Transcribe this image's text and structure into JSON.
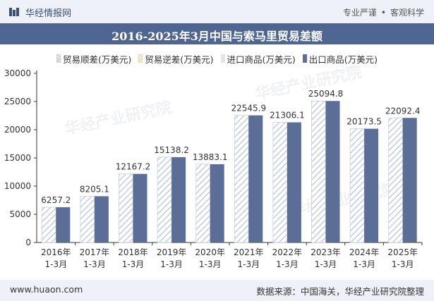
{
  "header": {
    "site_name": "华经情报网",
    "slogan_left": "专业严谨",
    "slogan_right": "客观科学"
  },
  "title": "2016-2025年3月中国与索马里贸易差额",
  "legend": [
    "贸易顺差(万美元)",
    "贸易逆差(万美元)",
    "进口商品(万美元)",
    "出口商品(万美元)"
  ],
  "footer": {
    "left": "www.huaon.com",
    "right": "数据来源：中国海关，华经产业研究院整理"
  },
  "watermark": "华经产业研究院",
  "colors": {
    "export": "#5b6e98",
    "surplus_hatch": "#b9c3d6",
    "topbar": "#eef2f8",
    "titlebar": "#4f6592"
  },
  "chart_data": {
    "type": "bar",
    "categories": [
      [
        "2016年",
        "1-3月"
      ],
      [
        "2017年",
        "1-3月"
      ],
      [
        "2018年",
        "1-3月"
      ],
      [
        "2019年",
        "1-3月"
      ],
      [
        "2020年",
        "1-3月"
      ],
      [
        "2021年",
        "1-3月"
      ],
      [
        "2022年",
        "1-3月"
      ],
      [
        "2023年",
        "1-3月"
      ],
      [
        "2024年",
        "1-3月"
      ],
      [
        "2025年",
        "1-3月"
      ]
    ],
    "series": [
      {
        "name": "贸易顺差(万美元)",
        "values": [
          6257.2,
          8205.1,
          12167.2,
          15138.2,
          13883.1,
          22545.9,
          21306.1,
          25094.8,
          20173.5,
          22092.4
        ]
      },
      {
        "name": "贸易逆差(万美元)",
        "values": [
          0,
          0,
          0,
          0,
          0,
          0,
          0,
          0,
          0,
          0
        ]
      },
      {
        "name": "进口商品(万美元)",
        "values": [
          0,
          0,
          0,
          0,
          0,
          0,
          0,
          0,
          0,
          0
        ]
      },
      {
        "name": "出口商品(万美元)",
        "values": [
          6257.2,
          8205.1,
          12167.2,
          15138.2,
          13883.1,
          22545.9,
          21306.1,
          25094.8,
          20173.5,
          22092.4
        ]
      }
    ],
    "data_labels": [
      "6257.2",
      "8205.1",
      "12167.2",
      "15138.2",
      "13883.1",
      "22545.9",
      "21306.1",
      "25094.8",
      "20173.5",
      "22092.4"
    ],
    "ylim": [
      0,
      30000
    ],
    "yticks": [
      0,
      5000,
      10000,
      15000,
      20000,
      25000,
      30000
    ],
    "grid": false,
    "legend_position": "top"
  }
}
